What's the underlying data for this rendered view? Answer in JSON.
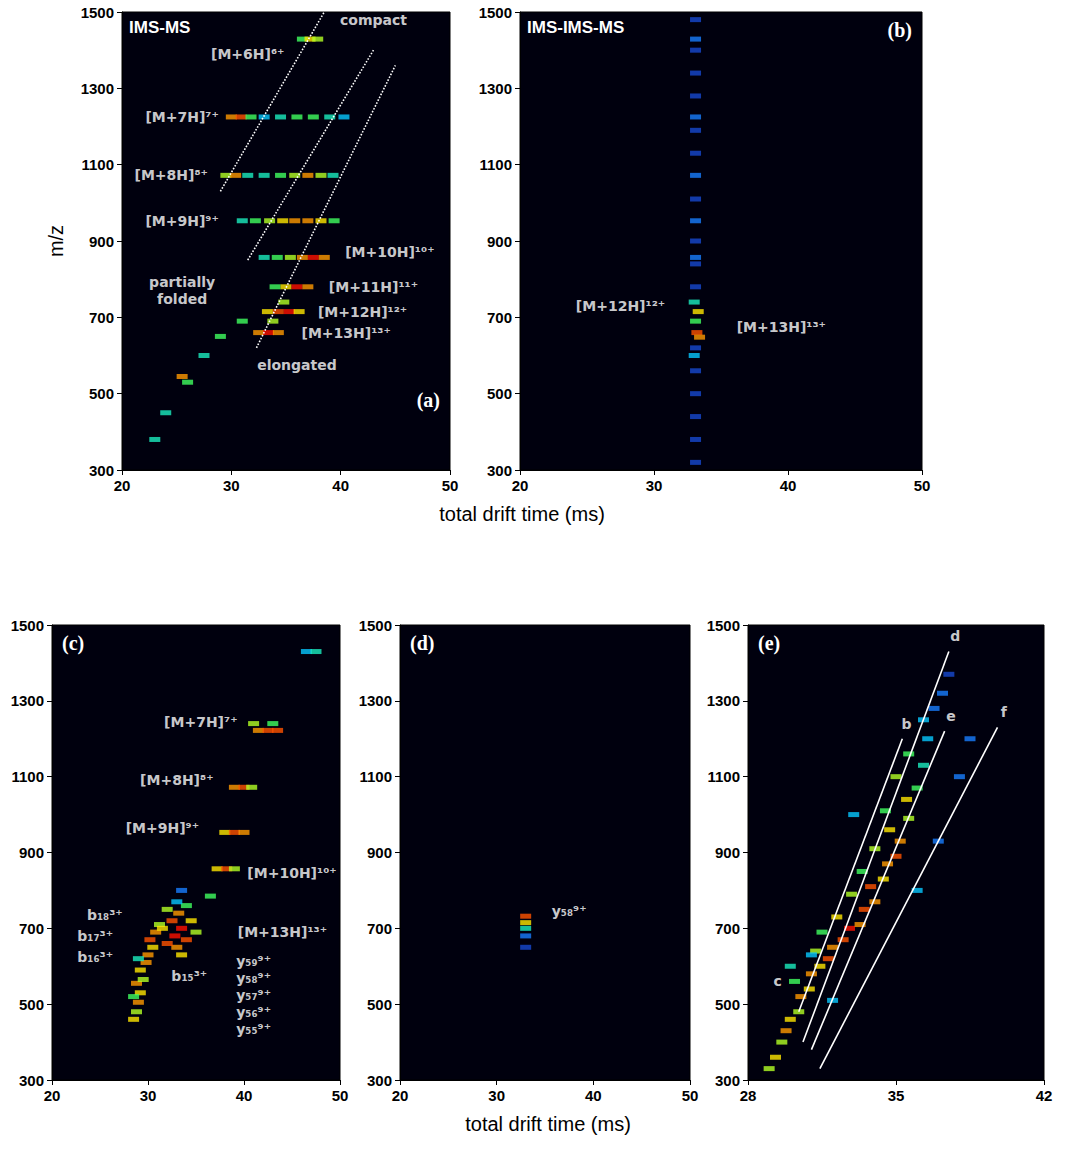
{
  "chart_data": [
    {
      "type": "scatter",
      "letter": "(a)",
      "title": "IMS-MS",
      "x_label": "total drift time (ms)",
      "y_label": "m/z",
      "xlim": [
        20,
        50
      ],
      "xticks": [
        20,
        30,
        40,
        50
      ],
      "ylim": [
        300,
        1500
      ],
      "yticks": [
        300,
        500,
        700,
        900,
        1100,
        1300,
        1500
      ],
      "intensity_range": [
        0,
        10
      ],
      "grid": false,
      "series": [
        {
          "type": "scatter",
          "marker": "rect",
          "x": [
            36.5,
            37.2,
            37.9,
            30,
            30.9,
            31.8,
            33,
            34.5,
            36,
            37.5,
            39,
            40.3,
            29.5,
            30.4,
            31.5,
            33,
            34.5,
            35.8,
            37,
            38.2,
            39.3,
            31,
            32.2,
            33.5,
            34.7,
            35.8,
            37,
            38.2,
            39.4,
            33,
            34.2,
            35.4,
            36.5,
            37.5,
            38.5,
            34,
            35,
            36,
            37,
            33.3,
            34.3,
            35.3,
            36.2,
            32.5,
            33.4,
            34.3,
            33.8,
            34.8,
            25.5,
            26,
            24,
            23,
            27.5,
            29,
            31
          ],
          "values": [
            1429,
            1429,
            1429,
            1225,
            1225,
            1225,
            1225,
            1225,
            1225,
            1225,
            1225,
            1225,
            1072,
            1072,
            1072,
            1072,
            1072,
            1072,
            1072,
            1072,
            1072,
            953,
            953,
            953,
            953,
            953,
            953,
            953,
            953,
            857,
            857,
            857,
            857,
            857,
            857,
            780,
            780,
            780,
            780,
            715,
            715,
            715,
            715,
            660,
            660,
            660,
            690,
            740,
            545,
            530,
            450,
            380,
            600,
            650,
            690
          ],
          "intensity": [
            5,
            7,
            6,
            8,
            9,
            5,
            3,
            4,
            5,
            5,
            4,
            3,
            6,
            8,
            4,
            4,
            5,
            6,
            8,
            6,
            4,
            4,
            5,
            6,
            7,
            8,
            8,
            7,
            5,
            4,
            5,
            6,
            8,
            10,
            8,
            5,
            7,
            10,
            8,
            7,
            9,
            10,
            7,
            8,
            10,
            8,
            6,
            6,
            8,
            5,
            4,
            4,
            4,
            5,
            5
          ]
        },
        {
          "type": "line",
          "line_style": "dotted",
          "color": "#ffffff",
          "x": [
            29,
            38.5
          ],
          "values": [
            1030,
            1500
          ]
        },
        {
          "type": "line",
          "line_style": "dotted",
          "color": "#ffffff",
          "x": [
            31.5,
            43
          ],
          "values": [
            850,
            1400
          ]
        },
        {
          "type": "line",
          "line_style": "dotted",
          "color": "#ffffff",
          "x": [
            32.3,
            45
          ],
          "values": [
            620,
            1360
          ]
        }
      ],
      "annotations": [
        {
          "text": "compact",
          "x": 43,
          "y": 1480
        },
        {
          "text": "[M+6H]⁶⁺",
          "x": 31.5,
          "y": 1390
        },
        {
          "text": "[M+7H]⁷⁺",
          "x": 25.5,
          "y": 1225
        },
        {
          "text": "[M+8H]⁸⁺",
          "x": 24.5,
          "y": 1072
        },
        {
          "text": "[M+9H]⁹⁺",
          "x": 25.5,
          "y": 953
        },
        {
          "text": "[M+10H]¹⁰⁺",
          "x": 44.5,
          "y": 870
        },
        {
          "text": "[M+11H]¹¹⁺",
          "x": 43,
          "y": 780
        },
        {
          "text": "[M+12H]¹²⁺",
          "x": 42,
          "y": 715
        },
        {
          "text": "[M+13H]¹³⁺",
          "x": 40.5,
          "y": 660
        },
        {
          "text": "partially folded",
          "x": 25.5,
          "y": 770
        },
        {
          "text": "elongated",
          "x": 36,
          "y": 575
        }
      ]
    },
    {
      "type": "scatter",
      "letter": "(b)",
      "title": "IMS-IMS-MS",
      "xlim": [
        20,
        50
      ],
      "xticks": [
        20,
        30,
        40,
        50
      ],
      "ylim": [
        300,
        1500
      ],
      "yticks": [
        300,
        500,
        700,
        900,
        1100,
        1300,
        1500
      ],
      "intensity_range": [
        0,
        10
      ],
      "grid": false,
      "series": [
        {
          "type": "scatter",
          "marker": "rect",
          "x": [
            33.1,
            33.1,
            33.1,
            33.1,
            33.1,
            33.1,
            33.1,
            33.1,
            33.1,
            33.1,
            33.1,
            33.1,
            33.1,
            33.1,
            33.1,
            33.1,
            33.1,
            33.1,
            33.1,
            33.1,
            33.1,
            33.3,
            33.1,
            33.2,
            33.4,
            33,
            33
          ],
          "values": [
            320,
            380,
            440,
            500,
            560,
            620,
            780,
            840,
            857,
            900,
            953,
            1010,
            1072,
            1130,
            1190,
            1225,
            1280,
            1340,
            1400,
            1429,
            1480,
            715,
            690,
            660,
            648,
            600,
            740
          ],
          "intensity": [
            1,
            1,
            1,
            1,
            1,
            1,
            1,
            1,
            2,
            1,
            2,
            1,
            2,
            1,
            1,
            2,
            1,
            1,
            1,
            2,
            1,
            7,
            5,
            9,
            8,
            3,
            4
          ]
        }
      ],
      "annotations": [
        {
          "text": "[M+12H]¹²⁺",
          "x": 27.5,
          "y": 730
        },
        {
          "text": "[M+13H]¹³⁺",
          "x": 39.5,
          "y": 675
        }
      ]
    },
    {
      "type": "scatter",
      "letter": "(c)",
      "x_label": "total drift time (ms)",
      "xlim": [
        20,
        50
      ],
      "xticks": [
        20,
        30,
        40,
        50
      ],
      "ylim": [
        300,
        1500
      ],
      "yticks": [
        300,
        500,
        700,
        900,
        1100,
        1300,
        1500
      ],
      "intensity_range": [
        0,
        10
      ],
      "grid": false,
      "series": [
        {
          "type": "scatter",
          "marker": "rect",
          "x": [
            46.5,
            47.5,
            41.5,
            42.5,
            43.5,
            41,
            43,
            39,
            40,
            40.8,
            38,
            39,
            40,
            37.2,
            38.2,
            39,
            36.5,
            28.5,
            28.8,
            29,
            29.2,
            28.8,
            29.5,
            29.2,
            29.8,
            30,
            30.5,
            30.2,
            30.8,
            31.2,
            28.5,
            29,
            31.5,
            32.5,
            33.5,
            32.8,
            34,
            33,
            32,
            34.5,
            33.2,
            32,
            35,
            33.5,
            34,
            33,
            33.5
          ],
          "values": [
            1430,
            1430,
            1222,
            1222,
            1222,
            1240,
            1240,
            1072,
            1072,
            1072,
            953,
            953,
            953,
            857,
            857,
            857,
            785,
            460,
            480,
            505,
            530,
            555,
            565,
            590,
            610,
            630,
            650,
            670,
            690,
            710,
            520,
            620,
            700,
            720,
            700,
            680,
            670,
            650,
            660,
            720,
            740,
            750,
            690,
            630,
            760,
            770,
            800
          ],
          "intensity": [
            3,
            4,
            8,
            9,
            9,
            6,
            5,
            8,
            9,
            6,
            7,
            9,
            8,
            7,
            9,
            6,
            5,
            7,
            6,
            8,
            7,
            8,
            6,
            7,
            8,
            8,
            7,
            9,
            8,
            6,
            5,
            4,
            7,
            9,
            10,
            10,
            9,
            8,
            9,
            7,
            8,
            6,
            6,
            7,
            5,
            3,
            2
          ]
        }
      ],
      "annotations": [
        {
          "text": "[M+7H]⁷⁺",
          "x": 35.5,
          "y": 1245
        },
        {
          "text": "[M+8H]⁸⁺",
          "x": 33,
          "y": 1092
        },
        {
          "text": "[M+9H]⁹⁺",
          "x": 31.5,
          "y": 965
        },
        {
          "text": "[M+10H]¹⁰⁺",
          "x": 45,
          "y": 845
        },
        {
          "text": "[M+13H]¹³⁺",
          "x": 44,
          "y": 690
        },
        {
          "text": "b₁₈³⁺",
          "x": 25.5,
          "y": 735
        },
        {
          "text": "b₁₇³⁺",
          "x": 24.5,
          "y": 680
        },
        {
          "text": "b₁₆³⁺",
          "x": 24.5,
          "y": 625
        },
        {
          "text": "b₁₅³⁺",
          "x": 34.3,
          "y": 575
        },
        {
          "text": "y₅₉⁹⁺",
          "x": 41,
          "y": 615
        },
        {
          "text": "y₅₈⁹⁺",
          "x": 41,
          "y": 570
        },
        {
          "text": "y₅₇⁹⁺",
          "x": 41,
          "y": 525
        },
        {
          "text": "y₅₆⁹⁺",
          "x": 41,
          "y": 480
        },
        {
          "text": "y₅₅⁹⁺",
          "x": 41,
          "y": 435
        }
      ]
    },
    {
      "type": "scatter",
      "letter": "(d)",
      "xlim": [
        20,
        50
      ],
      "xticks": [
        20,
        30,
        40,
        50
      ],
      "ylim": [
        300,
        1500
      ],
      "yticks": [
        300,
        500,
        700,
        900,
        1100,
        1300,
        1500
      ],
      "intensity_range": [
        0,
        10
      ],
      "grid": false,
      "series": [
        {
          "type": "scatter",
          "marker": "rect",
          "x": [
            33,
            33,
            33,
            33,
            33
          ],
          "values": [
            732,
            715,
            700,
            680,
            650
          ],
          "intensity": [
            9,
            7,
            4,
            2,
            1
          ]
        }
      ],
      "annotations": [
        {
          "text": "y₅₈⁹⁺",
          "x": 37.5,
          "y": 745
        }
      ]
    },
    {
      "type": "scatter",
      "letter": "(e)",
      "xlim": [
        28,
        42
      ],
      "xticks": [
        28,
        35,
        42
      ],
      "ylim": [
        300,
        1500
      ],
      "yticks": [
        300,
        500,
        700,
        900,
        1100,
        1300,
        1500
      ],
      "intensity_range": [
        0,
        10
      ],
      "grid": false,
      "series": [
        {
          "type": "scatter",
          "marker": "rect",
          "x": [
            29.0,
            29.3,
            29.6,
            29.8,
            30.0,
            30.4,
            30.5,
            30.9,
            30.2,
            31.0,
            31.4,
            31.8,
            31.2,
            32.0,
            32.5,
            31.5,
            32.8,
            33.3,
            32.2,
            33.5,
            34.0,
            32.9,
            33.8,
            34.4,
            33.4,
            34.6,
            35.0,
            34.0,
            35.2,
            34.7,
            35.6,
            34.5,
            35.5,
            36.0,
            35.0,
            36.3,
            35.6,
            36.5,
            36.3,
            36.8,
            37.2,
            37.5,
            31.0,
            36.0,
            37.0,
            30.0,
            33.0,
            38.0,
            32.0,
            38.5
          ],
          "values": [
            330,
            360,
            400,
            430,
            460,
            480,
            520,
            540,
            560,
            580,
            600,
            620,
            640,
            650,
            670,
            690,
            700,
            710,
            730,
            750,
            770,
            790,
            810,
            830,
            850,
            870,
            890,
            910,
            930,
            960,
            990,
            1010,
            1040,
            1070,
            1100,
            1130,
            1160,
            1200,
            1250,
            1280,
            1320,
            1370,
            630,
            800,
            930,
            600,
            1000,
            1100,
            510,
            1200
          ],
          "intensity": [
            6,
            7,
            6,
            8,
            7,
            6,
            8,
            7,
            5,
            8,
            7,
            9,
            6,
            8,
            9,
            5,
            10,
            8,
            7,
            9,
            8,
            6,
            9,
            7,
            5,
            8,
            9,
            6,
            8,
            7,
            6,
            5,
            7,
            5,
            6,
            4,
            5,
            3,
            3,
            2,
            2,
            1,
            3,
            3,
            2,
            4,
            3,
            2,
            3,
            2
          ]
        },
        {
          "type": "line",
          "line_style": "solid",
          "color": "#ffffff",
          "x": [
            30.4,
            35.3
          ],
          "values": [
            480,
            1200
          ]
        },
        {
          "type": "line",
          "line_style": "solid",
          "color": "#ffffff",
          "x": [
            30.6,
            37.5
          ],
          "values": [
            400,
            1430
          ]
        },
        {
          "type": "line",
          "line_style": "solid",
          "color": "#ffffff",
          "x": [
            31.0,
            37.3
          ],
          "values": [
            380,
            1220
          ]
        },
        {
          "type": "line",
          "line_style": "solid",
          "color": "#ffffff",
          "x": [
            31.4,
            39.8
          ],
          "values": [
            330,
            1230
          ]
        }
      ],
      "annotations": [
        {
          "text": "b",
          "x": 35.5,
          "y": 1240
        },
        {
          "text": "d",
          "x": 37.8,
          "y": 1470
        },
        {
          "text": "e",
          "x": 37.6,
          "y": 1260
        },
        {
          "text": "f",
          "x": 40.1,
          "y": 1270
        },
        {
          "text": "c",
          "x": 29.4,
          "y": 560
        }
      ]
    }
  ]
}
